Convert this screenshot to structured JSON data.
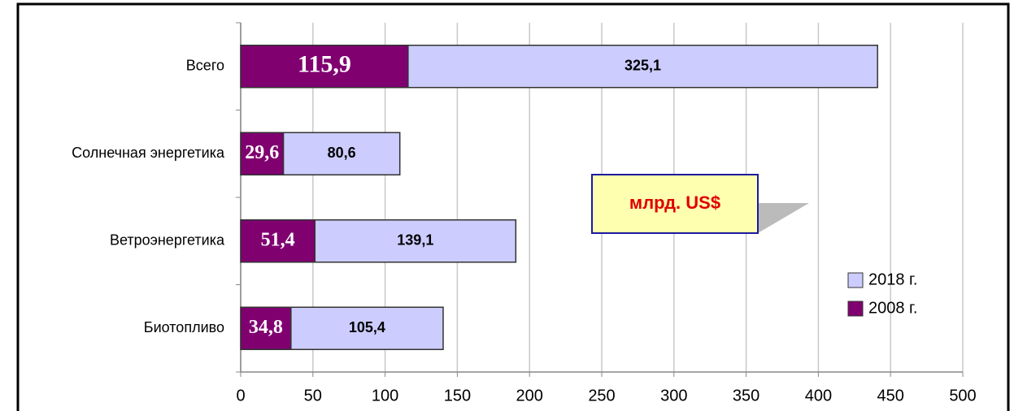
{
  "chart_data": {
    "type": "stacked-barh",
    "categories": [
      "Всего",
      "Солнечная энергетика",
      "Ветроэнергетика",
      "Биотопливо"
    ],
    "series": [
      {
        "name": "2008 г.",
        "color": "#800070",
        "values": [
          115.9,
          29.6,
          51.4,
          34.8
        ],
        "value_labels": [
          "115,9",
          "29,6",
          "51,4",
          "34,8"
        ]
      },
      {
        "name": "2018 г.",
        "color": "#ccccff",
        "values": [
          325.1,
          80.6,
          139.1,
          105.4
        ],
        "value_labels": [
          "325,1",
          "80,6",
          "139,1",
          "105,4"
        ]
      }
    ],
    "xlim": [
      0,
      500
    ],
    "xticks": [
      0,
      50,
      100,
      150,
      200,
      250,
      300,
      350,
      400,
      450,
      500
    ],
    "grid": true,
    "legend": "right",
    "annotation": "млрд. US$"
  }
}
